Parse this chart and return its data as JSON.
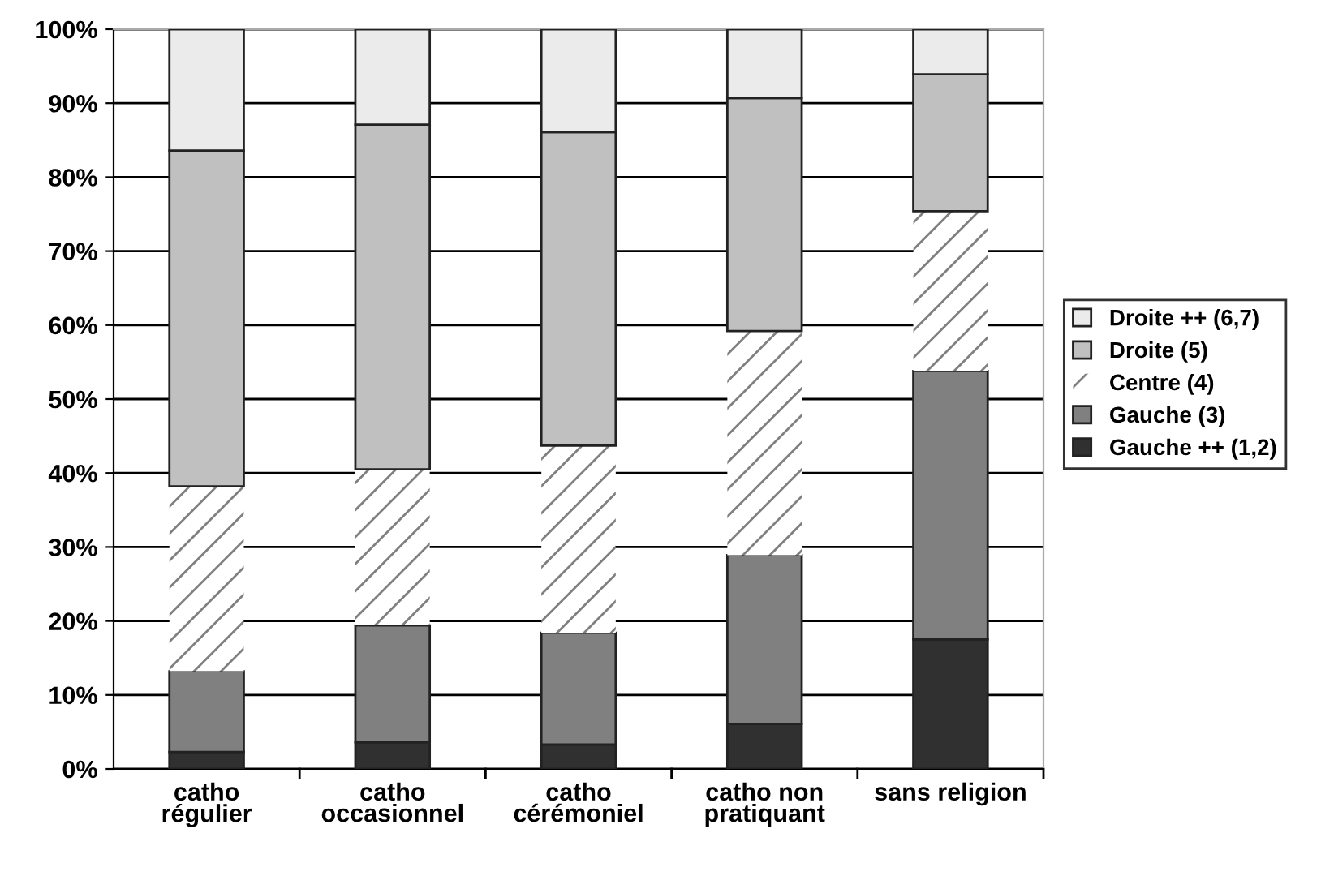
{
  "chart_data": {
    "type": "bar",
    "stacked": true,
    "categories": [
      "catho\nrégulier",
      "catho\noccasionnel",
      "catho\ncérémoniel",
      "catho non\npratiquant",
      "sans religion"
    ],
    "series": [
      {
        "name": "Gauche ++ (1,2)",
        "color": "#303030",
        "values": [
          2.3,
          3.6,
          3.3,
          6.1,
          17.5
        ]
      },
      {
        "name": "Gauche (3)",
        "color": "#808080",
        "values": [
          10.9,
          15.8,
          15.1,
          22.8,
          36.3
        ]
      },
      {
        "name": "Centre (4)",
        "color": "#ffffff",
        "values": [
          25.0,
          21.1,
          25.3,
          30.3,
          21.6
        ]
      },
      {
        "name": "Droite (5)",
        "color": "#c0c0c0",
        "values": [
          45.4,
          46.6,
          42.4,
          31.5,
          18.5
        ]
      },
      {
        "name": "Droite ++ (6,7)",
        "color": "#ebebeb",
        "values": [
          16.4,
          12.9,
          13.9,
          9.3,
          6.1
        ]
      }
    ],
    "ylim": [
      0,
      100
    ],
    "yticks": [
      {
        "value": 0,
        "label": "0%"
      },
      {
        "value": 10,
        "label": "10%"
      },
      {
        "value": 20,
        "label": "20%"
      },
      {
        "value": 30,
        "label": "30%"
      },
      {
        "value": 40,
        "label": "40%"
      },
      {
        "value": 50,
        "label": "50%"
      },
      {
        "value": 60,
        "label": "60%"
      },
      {
        "value": 70,
        "label": "70%"
      },
      {
        "value": 80,
        "label": "80%"
      },
      {
        "value": 90,
        "label": "90%"
      },
      {
        "value": 100,
        "label": "100%"
      }
    ],
    "grid": "y",
    "legend": "right"
  }
}
